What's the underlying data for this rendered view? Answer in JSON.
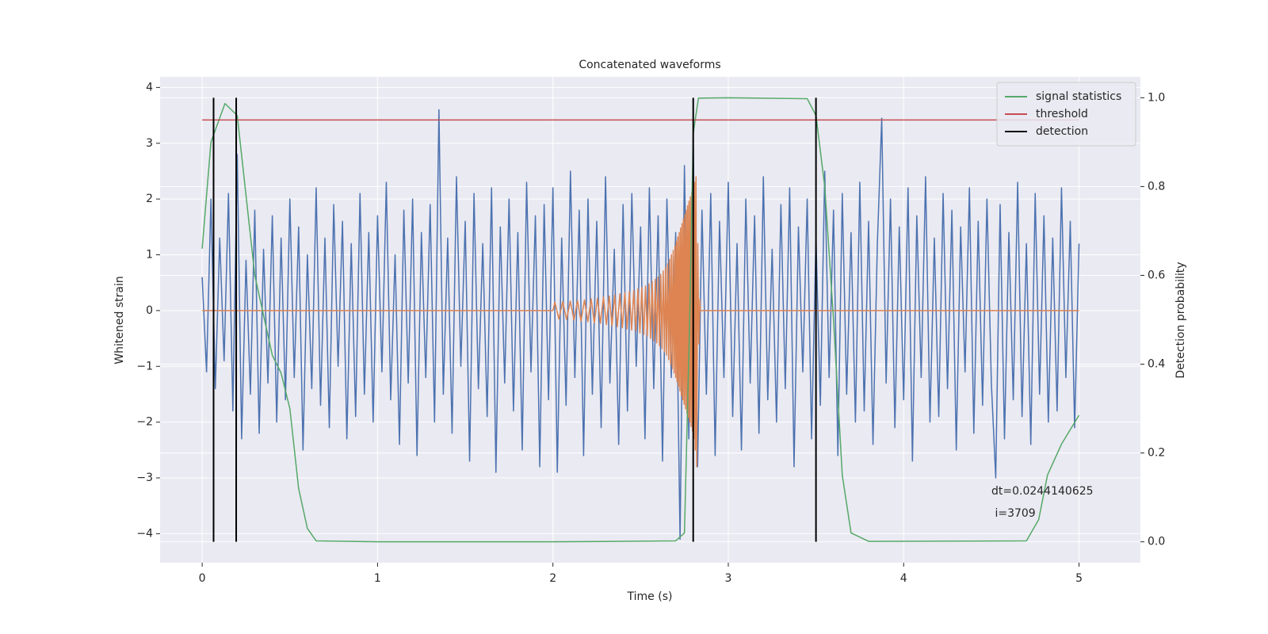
{
  "chart_data": {
    "type": "line",
    "title": "Concatenated waveforms",
    "xlabel": "Time (s)",
    "ylabel": "Whitened strain",
    "y2label": "Detection probability",
    "xlim": [
      -0.24,
      5.35
    ],
    "xticks": [
      0,
      1,
      2,
      3,
      4,
      5
    ],
    "ylim": [
      -4.52,
      4.19
    ],
    "yticks": [
      {
        "value": -4,
        "label": "−4"
      },
      {
        "value": -3,
        "label": "−3"
      },
      {
        "value": -2,
        "label": "−2"
      },
      {
        "value": -1,
        "label": "−1"
      },
      0,
      1,
      2,
      3,
      4
    ],
    "y2lim": [
      -0.047,
      1.047
    ],
    "y2ticks": [
      {
        "value": 0,
        "label": "0.0"
      },
      {
        "value": 0.2,
        "label": "0.2"
      },
      {
        "value": 0.4,
        "label": "0.4"
      },
      {
        "value": 0.6,
        "label": "0.6"
      },
      {
        "value": 0.8,
        "label": "0.8"
      },
      {
        "value": 1,
        "label": "1.0"
      }
    ],
    "grid": true,
    "legend": "upper right",
    "annotation": [
      "dt=0.0244140625",
      " i=3709"
    ],
    "series": [
      {
        "color": "#4c72b0",
        "x": [
          0,
          0.025,
          0.05,
          0.075,
          0.1,
          0.125,
          0.15,
          0.175,
          0.2,
          0.225,
          0.25,
          0.275,
          0.3,
          0.325,
          0.35,
          0.375,
          0.4,
          0.425,
          0.45,
          0.475,
          0.5,
          0.525,
          0.55,
          0.575,
          0.6,
          0.625,
          0.65,
          0.675,
          0.7,
          0.725,
          0.75,
          0.775,
          0.8,
          0.825,
          0.85,
          0.875,
          0.9,
          0.925,
          0.95,
          0.975,
          1,
          1.025,
          1.05,
          1.075,
          1.1,
          1.125,
          1.15,
          1.175,
          1.2,
          1.225,
          1.25,
          1.275,
          1.3,
          1.325,
          1.35,
          1.375,
          1.4,
          1.425,
          1.45,
          1.475,
          1.5,
          1.525,
          1.55,
          1.575,
          1.6,
          1.625,
          1.65,
          1.675,
          1.7,
          1.725,
          1.75,
          1.775,
          1.8,
          1.825,
          1.85,
          1.875,
          1.9,
          1.925,
          1.95,
          1.975,
          2,
          2.025,
          2.05,
          2.075,
          2.1,
          2.125,
          2.15,
          2.175,
          2.2,
          2.225,
          2.25,
          2.275,
          2.3,
          2.325,
          2.35,
          2.375,
          2.4,
          2.425,
          2.45,
          2.475,
          2.5,
          2.525,
          2.55,
          2.575,
          2.6,
          2.625,
          2.65,
          2.675,
          2.7,
          2.725,
          2.75,
          2.775,
          2.8,
          2.825,
          2.85,
          2.875,
          2.9,
          2.925,
          2.95,
          2.975,
          3,
          3.025,
          3.05,
          3.075,
          3.1,
          3.125,
          3.15,
          3.175,
          3.2,
          3.225,
          3.25,
          3.275,
          3.3,
          3.325,
          3.35,
          3.375,
          3.4,
          3.425,
          3.45,
          3.475,
          3.5,
          3.525,
          3.55,
          3.575,
          3.6,
          3.625,
          3.65,
          3.675,
          3.7,
          3.725,
          3.75,
          3.775,
          3.8,
          3.825,
          3.85,
          3.875,
          3.9,
          3.925,
          3.95,
          3.975,
          4,
          4.025,
          4.05,
          4.075,
          4.1,
          4.125,
          4.15,
          4.175,
          4.2,
          4.225,
          4.25,
          4.275,
          4.3,
          4.325,
          4.35,
          4.375,
          4.4,
          4.425,
          4.45,
          4.475,
          4.5,
          4.525,
          4.55,
          4.575,
          4.6,
          4.625,
          4.65,
          4.675,
          4.7,
          4.725,
          4.75,
          4.775,
          4.8,
          4.825,
          4.85,
          4.875,
          4.9,
          4.925,
          4.95,
          4.975,
          5
        ],
        "values": [
          0.6,
          -1.1,
          2.0,
          -1.4,
          1.3,
          -0.9,
          2.1,
          -1.8,
          2.8,
          -2.3,
          0.9,
          -1.5,
          1.8,
          -2.2,
          1.1,
          -1.3,
          1.7,
          -2.0,
          1.3,
          -1.6,
          2.0,
          -1.2,
          1.5,
          -2.5,
          1.0,
          -1.4,
          2.2,
          -1.7,
          1.3,
          -2.1,
          1.9,
          -1.0,
          1.6,
          -2.3,
          1.2,
          -1.9,
          2.1,
          -1.5,
          1.4,
          -2.0,
          1.7,
          -1.1,
          2.3,
          -1.6,
          1.0,
          -2.4,
          1.8,
          -1.3,
          2.0,
          -2.6,
          1.4,
          -1.2,
          1.9,
          -2.0,
          3.6,
          -1.5,
          1.3,
          -2.2,
          2.4,
          -1.0,
          1.6,
          -2.7,
          2.1,
          -1.4,
          1.2,
          -1.9,
          2.2,
          -2.9,
          1.5,
          -1.3,
          2.0,
          -1.8,
          1.4,
          -2.5,
          2.3,
          -1.1,
          1.7,
          -2.8,
          1.9,
          -1.6,
          2.2,
          -2.9,
          1.3,
          -1.7,
          2.5,
          -1.2,
          1.8,
          -2.6,
          2.0,
          -1.5,
          1.6,
          -2.1,
          2.4,
          -1.3,
          1.1,
          -2.4,
          1.9,
          -1.8,
          2.1,
          -1.0,
          1.5,
          -2.3,
          2.2,
          -1.4,
          1.7,
          -2.7,
          2.0,
          -1.2,
          1.4,
          -4.1,
          2.6,
          -2.3,
          3.0,
          -2.8,
          1.8,
          -1.5,
          2.1,
          -2.6,
          1.6,
          -1.2,
          2.3,
          -1.9,
          1.2,
          -2.5,
          2.0,
          -1.3,
          1.7,
          -2.2,
          2.4,
          -1.6,
          1.1,
          -2.0,
          1.9,
          -1.4,
          2.2,
          -2.8,
          1.5,
          -1.1,
          2.0,
          -2.3,
          1.3,
          -1.7,
          2.5,
          -1.2,
          1.8,
          -2.6,
          2.1,
          -1.5,
          1.4,
          -2.0,
          2.3,
          -1.8,
          1.6,
          -2.4,
          1.2,
          3.45,
          -1.3,
          2.0,
          -2.1,
          1.5,
          -1.6,
          2.2,
          -2.7,
          1.7,
          -1.2,
          2.4,
          -2.0,
          1.3,
          -1.9,
          2.1,
          -1.4,
          1.8,
          -2.5,
          1.5,
          -1.1,
          2.2,
          -2.2,
          1.6,
          -1.7,
          2.0,
          -1.3,
          -3.0,
          1.9,
          -2.3,
          1.4,
          -1.6,
          2.3,
          -1.9,
          1.2,
          -2.4,
          2.1,
          -1.5,
          1.7,
          -2.0,
          1.3,
          -1.8,
          2.2,
          -1.2,
          1.6,
          -2.1,
          1.2
        ]
      },
      {
        "color": "#dd8452",
        "x": [
          0,
          2.0,
          2.011,
          2.034,
          2.056,
          2.078,
          2.099,
          2.12,
          2.14,
          2.16,
          2.18,
          2.199,
          2.218,
          2.236,
          2.254,
          2.271,
          2.288,
          2.305,
          2.321,
          2.337,
          2.352,
          2.367,
          2.382,
          2.396,
          2.41,
          2.423,
          2.436,
          2.449,
          2.461,
          2.473,
          2.485,
          2.496,
          2.507,
          2.518,
          2.528,
          2.538,
          2.548,
          2.557,
          2.566,
          2.575,
          2.584,
          2.592,
          2.6,
          2.608,
          2.615,
          2.622,
          2.629,
          2.636,
          2.642,
          2.648,
          2.654,
          2.66,
          2.666,
          2.671,
          2.676,
          2.681,
          2.686,
          2.691,
          2.696,
          2.7,
          2.704,
          2.708,
          2.712,
          2.716,
          2.72,
          2.724,
          2.728,
          2.732,
          2.736,
          2.74,
          2.744,
          2.748,
          2.752,
          2.756,
          2.76,
          2.764,
          2.768,
          2.772,
          2.776,
          2.78,
          2.784,
          2.788,
          2.792,
          2.796,
          2.8,
          2.804,
          2.808,
          2.812,
          2.816,
          2.82,
          2.826,
          2.832,
          2.838,
          2.84,
          5.0
        ],
        "values": [
          0,
          0,
          0.15,
          -0.15,
          0.16,
          -0.16,
          0.17,
          -0.17,
          0.18,
          -0.19,
          0.19,
          -0.2,
          0.21,
          -0.22,
          0.22,
          -0.23,
          0.24,
          -0.25,
          0.26,
          -0.27,
          0.28,
          -0.29,
          0.3,
          -0.31,
          0.32,
          -0.33,
          0.34,
          -0.35,
          0.36,
          -0.37,
          0.39,
          -0.4,
          0.41,
          -0.43,
          0.44,
          -0.46,
          0.48,
          -0.5,
          0.52,
          -0.54,
          0.56,
          -0.58,
          0.6,
          -0.63,
          0.65,
          -0.68,
          0.71,
          -0.74,
          0.77,
          -0.8,
          0.84,
          -0.88,
          0.92,
          -0.96,
          1.0,
          -1.04,
          1.08,
          -1.12,
          1.16,
          -1.2,
          1.24,
          -1.28,
          1.32,
          -1.36,
          1.4,
          -1.44,
          1.48,
          -1.52,
          1.56,
          -1.6,
          1.64,
          -1.68,
          1.72,
          -1.76,
          1.8,
          -1.84,
          1.88,
          -1.92,
          1.96,
          -2.0,
          2.04,
          -2.08,
          2.12,
          -2.16,
          2.2,
          -2.3,
          2.3,
          -2.5,
          2.4,
          -2.8,
          1.2,
          -0.6,
          0.2,
          0,
          0
        ]
      },
      {
        "name": "signal statistics",
        "color": "#55a868",
        "axis": "y2",
        "x": [
          0,
          0.05,
          0.13,
          0.2,
          0.3,
          0.4,
          0.45,
          0.5,
          0.55,
          0.6,
          0.65,
          1,
          2,
          2.7,
          2.75,
          2.78,
          2.8,
          2.83,
          3,
          3.45,
          3.5,
          3.55,
          3.6,
          3.65,
          3.7,
          3.8,
          4.7,
          4.77,
          4.82,
          4.9,
          5.0
        ],
        "values": [
          0.66,
          0.9,
          0.987,
          0.96,
          0.6,
          0.42,
          0.38,
          0.3,
          0.12,
          0.03,
          0.002,
          0,
          0,
          0.002,
          0.02,
          0.5,
          0.92,
          0.999,
          1.0,
          0.998,
          0.96,
          0.8,
          0.5,
          0.15,
          0.02,
          0.001,
          0.002,
          0.05,
          0.15,
          0.22,
          0.285
        ]
      },
      {
        "name": "threshold",
        "color": "#c44e52",
        "axis": "y2",
        "x": [
          0,
          5
        ],
        "values": [
          0.95,
          0.95
        ]
      }
    ],
    "vlines": {
      "name": "detection",
      "color": "#000000",
      "axis": "y2",
      "x": [
        0.065,
        0.194,
        2.8,
        3.5
      ],
      "ymin": 0,
      "ymax": 1
    }
  }
}
